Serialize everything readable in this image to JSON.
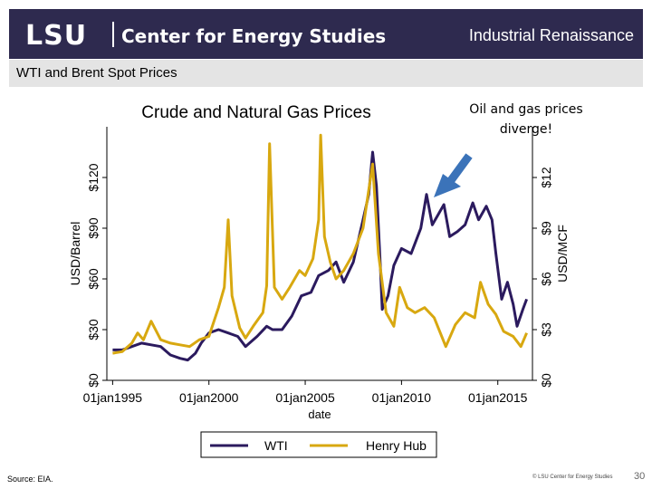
{
  "header": {
    "logo": "LSU",
    "center_name": "Center for Energy Studies",
    "title": "Industrial Renaissance"
  },
  "subheader": "WTI and Brent Spot Prices",
  "callout": "Oil and gas prices diverge!",
  "footer": {
    "source": "Source:  EIA.",
    "copyright": "© LSU Center for Energy Studies",
    "page": "30"
  },
  "colors": {
    "header_bg": "#2e2a4f",
    "wti": "#2b1a5e",
    "henry_hub": "#d8a810",
    "arrow": "#3b73b9"
  },
  "chart_data": {
    "type": "line",
    "title": "Crude and Natural Gas Prices",
    "xlabel": "date",
    "ylabel": "USD/Barrel",
    "y2label": "USD/MCF",
    "xlim": [
      1994.7,
      2016.8
    ],
    "ylim": [
      0,
      150
    ],
    "y2lim": [
      0,
      15
    ],
    "x_ticks": [
      {
        "value": 1995,
        "label": "01jan1995"
      },
      {
        "value": 2000,
        "label": "01jan2000"
      },
      {
        "value": 2005,
        "label": "01jan2005"
      },
      {
        "value": 2010,
        "label": "01jan2010"
      },
      {
        "value": 2015,
        "label": "01jan2015"
      }
    ],
    "y_ticks": [
      {
        "value": 0,
        "label": "$0"
      },
      {
        "value": 30,
        "label": "$30"
      },
      {
        "value": 60,
        "label": "$60"
      },
      {
        "value": 90,
        "label": "$90"
      },
      {
        "value": 120,
        "label": "$120"
      }
    ],
    "y2_ticks": [
      {
        "value": 0,
        "label": "$0"
      },
      {
        "value": 3,
        "label": "$3"
      },
      {
        "value": 6,
        "label": "$6"
      },
      {
        "value": 9,
        "label": "$9"
      },
      {
        "value": 12,
        "label": "$12"
      }
    ],
    "legend_position": "bottom",
    "grid": false,
    "series": [
      {
        "name": "WTI",
        "axis": "left",
        "x": [
          1995,
          1995.5,
          1996,
          1996.5,
          1997,
          1997.5,
          1998,
          1998.5,
          1998.9,
          1999.3,
          1999.6,
          2000,
          2000.5,
          2001,
          2001.5,
          2001.9,
          2002.5,
          2003,
          2003.3,
          2003.8,
          2004.3,
          2004.8,
          2005.3,
          2005.7,
          2006.2,
          2006.6,
          2007,
          2007.5,
          2008.0,
          2008.3,
          2008.5,
          2008.7,
          2008.9,
          2009.0,
          2009.3,
          2009.6,
          2010,
          2010.5,
          2011,
          2011.3,
          2011.6,
          2011.9,
          2012.2,
          2012.5,
          2012.9,
          2013.3,
          2013.7,
          2014.0,
          2014.4,
          2014.7,
          2014.9,
          2015.2,
          2015.5,
          2015.8,
          2016.0,
          2016.3,
          2016.5
        ],
        "y": [
          18,
          18,
          20,
          22,
          21,
          20,
          15,
          13,
          12,
          16,
          22,
          28,
          30,
          28,
          26,
          20,
          26,
          32,
          30,
          30,
          38,
          50,
          52,
          62,
          65,
          70,
          58,
          70,
          95,
          110,
          135,
          115,
          68,
          42,
          50,
          68,
          78,
          75,
          90,
          110,
          92,
          98,
          104,
          85,
          88,
          92,
          105,
          95,
          103,
          95,
          75,
          48,
          58,
          45,
          32,
          42,
          48
        ]
      },
      {
        "name": "Henry Hub",
        "axis": "right",
        "x": [
          1995,
          1995.5,
          1996,
          1996.3,
          1996.6,
          1997,
          1997.5,
          1998,
          1998.5,
          1999,
          1999.5,
          2000,
          2000.5,
          2000.8,
          2001.0,
          2001.2,
          2001.6,
          2001.9,
          2002.3,
          2002.8,
          2003.0,
          2003.15,
          2003.4,
          2003.8,
          2004.2,
          2004.7,
          2005.0,
          2005.4,
          2005.7,
          2005.8,
          2006.0,
          2006.3,
          2006.6,
          2007,
          2007.5,
          2008.0,
          2008.5,
          2008.8,
          2009.2,
          2009.6,
          2009.9,
          2010.3,
          2010.7,
          2011.2,
          2011.7,
          2012.3,
          2012.8,
          2013.3,
          2013.8,
          2014.1,
          2014.5,
          2014.9,
          2015.3,
          2015.8,
          2016.2,
          2016.5
        ],
        "y": [
          1.6,
          1.7,
          2.2,
          2.8,
          2.4,
          3.5,
          2.4,
          2.2,
          2.1,
          2.0,
          2.4,
          2.6,
          4.3,
          5.5,
          9.5,
          5.0,
          3.1,
          2.5,
          3.2,
          4.0,
          5.6,
          14.0,
          5.5,
          4.8,
          5.5,
          6.5,
          6.2,
          7.2,
          9.5,
          14.5,
          8.5,
          7.0,
          6.0,
          6.5,
          7.5,
          9.0,
          12.8,
          7.5,
          4.0,
          3.2,
          5.5,
          4.3,
          4.0,
          4.3,
          3.7,
          2.0,
          3.3,
          4.0,
          3.7,
          5.8,
          4.5,
          3.9,
          2.9,
          2.6,
          2.0,
          2.8
        ]
      }
    ]
  }
}
